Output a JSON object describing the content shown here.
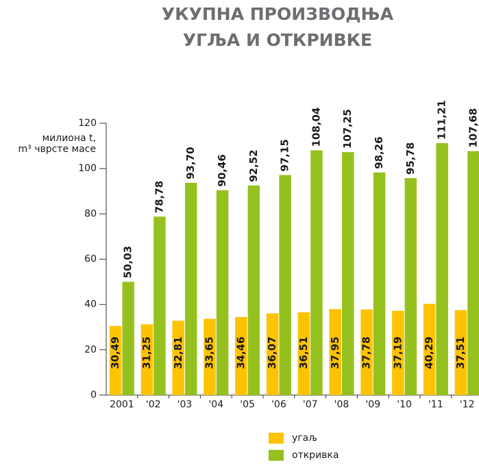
{
  "chart_data": {
    "type": "bar",
    "title": [
      "УКУПНА ПРОИЗВОДЊА",
      "УГЉА И ОТКРИВКЕ"
    ],
    "y_label": [
      "милиона t,",
      "m³ чврсте масе"
    ],
    "categories": [
      "2001",
      "'02",
      "'03",
      "'04",
      "'05",
      "'06",
      "'07",
      "'08",
      "'09",
      "'10",
      "'11",
      "'12"
    ],
    "series": [
      {
        "name": "угаљ",
        "color": "#fdc300",
        "values": [
          30.49,
          31.25,
          32.81,
          33.65,
          34.46,
          36.07,
          36.51,
          37.95,
          37.78,
          37.19,
          40.29,
          37.51
        ],
        "value_labels": [
          "30,49",
          "31,25",
          "32,81",
          "33,65",
          "34,46",
          "36,07",
          "36,51",
          "37,95",
          "37,78",
          "37,19",
          "40,29",
          "37,51"
        ]
      },
      {
        "name": "откривка",
        "color": "#95c11f",
        "values": [
          50.03,
          78.78,
          93.7,
          90.46,
          92.52,
          97.15,
          108.04,
          107.25,
          98.26,
          95.78,
          111.21,
          107.68
        ],
        "value_labels": [
          "50,03",
          "78,78",
          "93,70",
          "90,46",
          "92,52",
          "97,15",
          "108,04",
          "107,25",
          "98,26",
          "95,78",
          "111,21",
          "107,68"
        ]
      }
    ],
    "ylim": [
      0,
      120
    ],
    "yticks": [
      0,
      20,
      40,
      60,
      80,
      100,
      120
    ],
    "grid": false
  }
}
